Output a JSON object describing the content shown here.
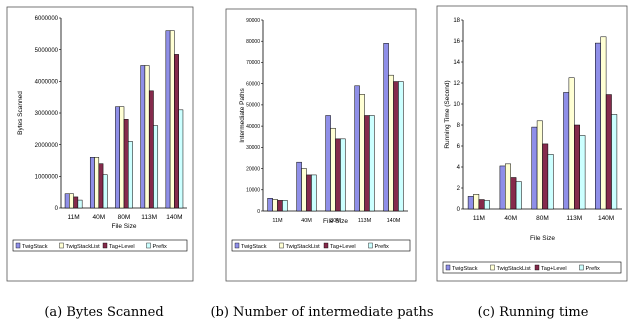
{
  "colors": {
    "TwigStack": "#8f8fe8",
    "TwigStackList": "#ffffd4",
    "Tag+Level": "#852b4c",
    "Prefix": "#ccffff"
  },
  "chart_data": [
    {
      "type": "bar",
      "caption": "(a) Bytes Scanned",
      "xlabel": "File Size",
      "ylabel": "Bytes Scanned",
      "categories": [
        "11M",
        "40M",
        "80M",
        "113M",
        "140M"
      ],
      "ylim": [
        0,
        6000000
      ],
      "yticks": [
        0,
        1000000,
        2000000,
        3000000,
        4000000,
        5000000,
        6000000
      ],
      "ytick_labels": [
        "0",
        "1000000",
        "2000000",
        "3000000",
        "4000000",
        "5000000",
        "6000000"
      ],
      "legend": [
        "TwigStack",
        "TwigStackList",
        "Tag+Level",
        "Prefix"
      ],
      "series": [
        {
          "name": "TwigStack",
          "values": [
            450000,
            1600000,
            3200000,
            4500000,
            5600000
          ]
        },
        {
          "name": "TwigStackList",
          "values": [
            450000,
            1600000,
            3200000,
            4500000,
            5600000
          ]
        },
        {
          "name": "Tag+Level",
          "values": [
            350000,
            1400000,
            2800000,
            3700000,
            4850000
          ]
        },
        {
          "name": "Prefix",
          "values": [
            250000,
            1050000,
            2100000,
            2600000,
            3100000
          ]
        }
      ]
    },
    {
      "type": "bar",
      "caption": "(b) Number of intermediate paths",
      "xlabel": "File Size",
      "ylabel": "Intermediate Paths",
      "categories": [
        "11M",
        "40M",
        "80M",
        "113M",
        "140M"
      ],
      "ylim": [
        0,
        90000
      ],
      "yticks": [
        0,
        10000,
        20000,
        30000,
        40000,
        50000,
        60000,
        70000,
        80000,
        90000
      ],
      "ytick_labels": [
        "0",
        "10000",
        "20000",
        "30000",
        "40000",
        "50000",
        "60000",
        "70000",
        "80000",
        "90000"
      ],
      "legend": [
        "TwigStack",
        "TwigStackList",
        "Tag+Level",
        "Prefix"
      ],
      "series": [
        {
          "name": "TwigStack",
          "values": [
            6000,
            23000,
            45000,
            59000,
            79000
          ]
        },
        {
          "name": "TwigStackList",
          "values": [
            5500,
            20000,
            39000,
            55000,
            64000
          ]
        },
        {
          "name": "Tag+Level",
          "values": [
            5000,
            17000,
            34000,
            45000,
            61000
          ]
        },
        {
          "name": "Prefix",
          "values": [
            5000,
            17000,
            34000,
            45000,
            61000
          ]
        }
      ]
    },
    {
      "type": "bar",
      "caption": "(c) Running time",
      "xlabel": "File Size",
      "ylabel": "Running Time (Second)",
      "categories": [
        "11M",
        "40M",
        "80M",
        "113M",
        "140M"
      ],
      "ylim": [
        0,
        18
      ],
      "yticks": [
        0,
        2,
        4,
        6,
        8,
        10,
        12,
        14,
        16,
        18
      ],
      "ytick_labels": [
        "0",
        "2",
        "4",
        "6",
        "8",
        "10",
        "12",
        "14",
        "16",
        "18"
      ],
      "legend": [
        "TwigStack",
        "TwigStackList",
        "Tag+Level",
        "Prefix"
      ],
      "series": [
        {
          "name": "TwigStack",
          "values": [
            1.2,
            4.1,
            7.8,
            11.1,
            15.8
          ]
        },
        {
          "name": "TwigStackList",
          "values": [
            1.4,
            4.3,
            8.4,
            12.5,
            16.4
          ]
        },
        {
          "name": "Tag+Level",
          "values": [
            0.9,
            3.0,
            6.2,
            8.0,
            10.9
          ]
        },
        {
          "name": "Prefix",
          "values": [
            0.8,
            2.6,
            5.2,
            7.0,
            9.0
          ]
        }
      ]
    }
  ]
}
